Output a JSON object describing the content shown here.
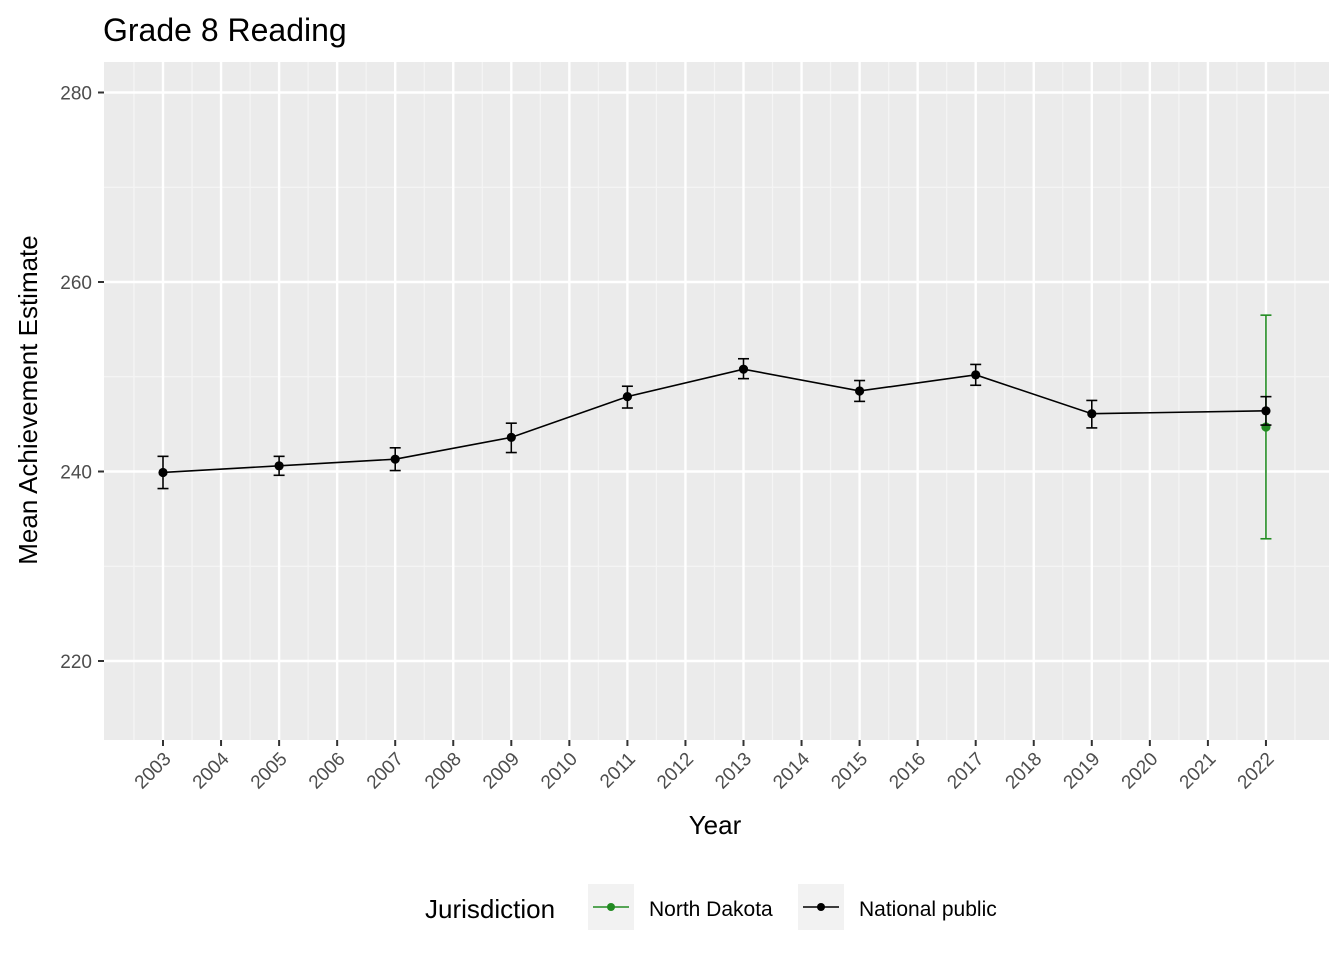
{
  "chart_data": {
    "type": "line",
    "title": "Grade 8 Reading",
    "xlabel": "Year",
    "ylabel": "Mean Achievement Estimate",
    "x_categories": [
      "2003",
      "2004",
      "2005",
      "2006",
      "2007",
      "2008",
      "2009",
      "2010",
      "2011",
      "2012",
      "2013",
      "2014",
      "2015",
      "2016",
      "2017",
      "2018",
      "2019",
      "2020",
      "2021",
      "2022"
    ],
    "yticks": [
      220,
      240,
      260,
      280
    ],
    "ylim": [
      213,
      283
    ],
    "grid": true,
    "legend": {
      "title": "Jurisdiction",
      "position": "bottom",
      "entries": [
        "North Dakota",
        "National public"
      ]
    },
    "series": [
      {
        "name": "North Dakota",
        "color": "#228b22",
        "points": [
          {
            "x": "2022",
            "y": 244.7,
            "lo": 232.9,
            "hi": 256.5
          }
        ]
      },
      {
        "name": "National public",
        "color": "#000000",
        "points": [
          {
            "x": "2003",
            "y": 239.9,
            "lo": 238.2,
            "hi": 241.6
          },
          {
            "x": "2005",
            "y": 240.6,
            "lo": 239.6,
            "hi": 241.6
          },
          {
            "x": "2007",
            "y": 241.3,
            "lo": 240.1,
            "hi": 242.5
          },
          {
            "x": "2009",
            "y": 243.6,
            "lo": 242.0,
            "hi": 245.1
          },
          {
            "x": "2011",
            "y": 247.9,
            "lo": 246.7,
            "hi": 249.0
          },
          {
            "x": "2013",
            "y": 250.8,
            "lo": 249.8,
            "hi": 251.9
          },
          {
            "x": "2015",
            "y": 248.5,
            "lo": 247.4,
            "hi": 249.6
          },
          {
            "x": "2017",
            "y": 250.2,
            "lo": 249.1,
            "hi": 251.3
          },
          {
            "x": "2019",
            "y": 246.1,
            "lo": 244.6,
            "hi": 247.5
          },
          {
            "x": "2022",
            "y": 246.4,
            "lo": 244.9,
            "hi": 247.9
          }
        ]
      }
    ]
  }
}
